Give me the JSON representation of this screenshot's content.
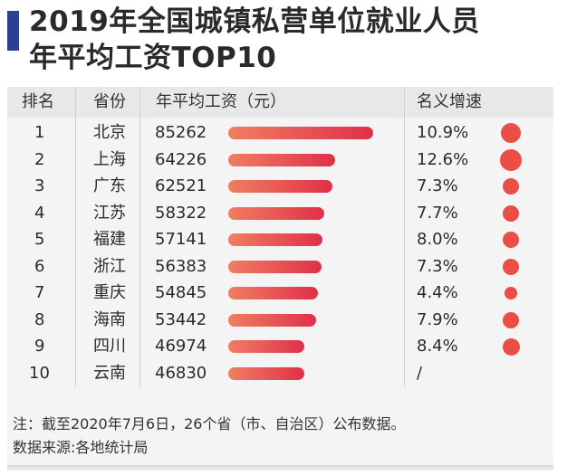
{
  "title": {
    "line1": "2019年全国城镇私营单位就业人员",
    "line2": "年平均工资TOP10"
  },
  "table": {
    "headers": [
      "排名",
      "省份",
      "年平均工资（元）",
      "名义增速"
    ]
  },
  "chart_data": {
    "type": "bar",
    "categories": [
      "北京",
      "上海",
      "广东",
      "江苏",
      "福建",
      "浙江",
      "重庆",
      "海南",
      "四川",
      "云南"
    ],
    "ranks": [
      "1",
      "2",
      "3",
      "4",
      "5",
      "6",
      "7",
      "8",
      "9",
      "10"
    ],
    "values": [
      85262,
      64226,
      62521,
      58322,
      57141,
      56383,
      54845,
      53442,
      46974,
      46830
    ],
    "value_labels": [
      "85262",
      "64226",
      "62521",
      "58322",
      "57141",
      "56383",
      "54845",
      "53442",
      "46974",
      "46830"
    ],
    "growth": [
      10.9,
      12.6,
      7.3,
      7.7,
      8.0,
      7.3,
      4.4,
      7.9,
      8.4,
      null
    ],
    "growth_labels": [
      "10.9%",
      "12.6%",
      "7.3%",
      "7.7%",
      "8.0%",
      "7.3%",
      "4.4%",
      "7.9%",
      "8.4%",
      "/"
    ],
    "colors": {
      "bar_start": "#f07e62",
      "bar_end": "#e0304a",
      "dot": "#ea4e44"
    }
  },
  "footnote": {
    "note": "注：截至2020年7月6日，26个省（市、自治区）公布数据。",
    "source": "数据来源:各地统计局"
  },
  "colors": {
    "accent": "#2e3f8f",
    "header_bg": "#e8e8e8",
    "card_bg": "#f4f4f4"
  }
}
